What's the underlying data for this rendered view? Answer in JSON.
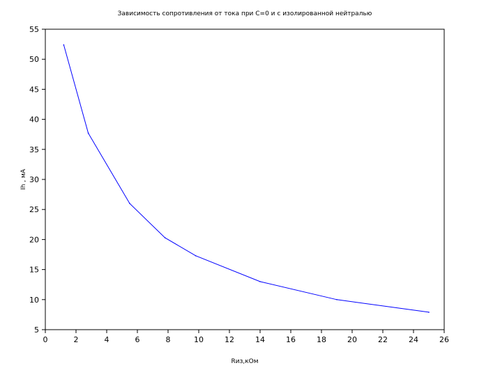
{
  "chart_data": {
    "type": "line",
    "title": "Зависимость сопротивления от тока при С=0 и с изолированной нейтралью",
    "xlabel": "Rиз,кОм",
    "ylabel": "Ih , мА",
    "xlim": [
      0,
      26
    ],
    "ylim": [
      5,
      55
    ],
    "x_ticks": [
      "0",
      "2",
      "4",
      "6",
      "8",
      "10",
      "12",
      "14",
      "16",
      "18",
      "20",
      "22",
      "24",
      "26"
    ],
    "y_ticks": [
      "5",
      "10",
      "15",
      "20",
      "25",
      "30",
      "35",
      "40",
      "45",
      "50",
      "55"
    ],
    "grid": false,
    "legend": "none",
    "series": [
      {
        "color": "#0000ff",
        "x": [
          1.2,
          2.8,
          5.5,
          7.8,
          9.8,
          14.0,
          19.0,
          25.0
        ],
        "y": [
          52.4,
          37.7,
          26.0,
          20.3,
          17.3,
          13.0,
          10.0,
          7.9
        ]
      }
    ]
  }
}
